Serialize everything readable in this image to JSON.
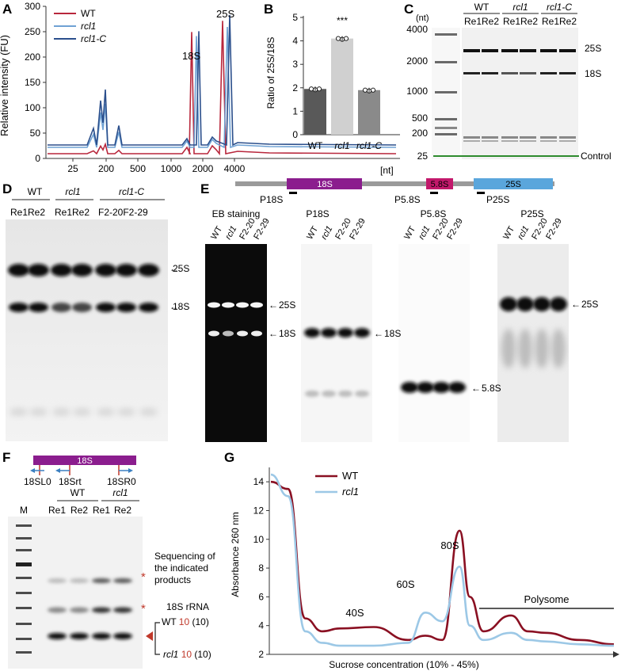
{
  "panels": {
    "A": "A",
    "B": "B",
    "C": "C",
    "D": "D",
    "E": "E",
    "F": "F",
    "G": "G"
  },
  "colors": {
    "wt": "#b8273c",
    "rcl1": "#6fa2d4",
    "rcl1c": "#2b4f8c",
    "purple": "#8b1d8e",
    "magenta": "#c2186b",
    "blue": "#5aa6dc",
    "grey": "#999999",
    "green": "#2e8b2e"
  },
  "A": {
    "ylabel": "Relative intensity (FU)",
    "xunit": "[nt]",
    "yticks": [
      "0",
      "50",
      "100",
      "150",
      "200",
      "250",
      "300"
    ],
    "xticks": [
      "25",
      "200",
      "500",
      "1000",
      "2000",
      "4000"
    ],
    "peaks": {
      "p18": "18S",
      "p25": "25S"
    },
    "legend": [
      "WT",
      "rcl1",
      "rcl1-C"
    ]
  },
  "B": {
    "ylabel": "Ratio of 25S/18S",
    "yticks": [
      "0",
      "1",
      "2",
      "3",
      "4",
      "5"
    ],
    "sig": "***",
    "categories": [
      "WT",
      "rcl1",
      "rcl1-C"
    ]
  },
  "C": {
    "unit": "(nt)",
    "ladder": [
      "4000",
      "2000",
      "1000",
      "500",
      "200",
      "25"
    ],
    "groups": [
      "WT",
      "rcl1",
      "rcl1-C"
    ],
    "reps": [
      "Re1Re2",
      "Re1Re2",
      "Re1Re2"
    ],
    "bands": [
      "25S",
      "18S",
      "Control"
    ]
  },
  "D": {
    "groups": [
      "WT",
      "rcl1",
      "rcl1-C"
    ],
    "reps": [
      "Re1Re2",
      "Re1Re2",
      "F2-20F2-29"
    ],
    "bands": [
      "25S",
      "18S"
    ]
  },
  "E": {
    "map": {
      "b18": "18S",
      "b58": "5.8S",
      "b25": "25S",
      "p18": "P18S",
      "p58": "P5.8S",
      "p25": "P25S"
    },
    "blots": [
      "EB staining",
      "P18S",
      "P5.8S",
      "P25S"
    ],
    "lanes": [
      "WT",
      "rcl1",
      "F2-20",
      "F2-29"
    ],
    "bands": {
      "eb25": "25S",
      "eb18": "18S",
      "p18": "18S",
      "p58": "5.8S",
      "p25": "25S"
    }
  },
  "F": {
    "gene": "18S",
    "primers": [
      "18SL0",
      "18Srt",
      "18SR0"
    ],
    "marker": "M",
    "groups": [
      "WT",
      "rcl1"
    ],
    "lanes": [
      "Re1",
      "Re2",
      "Re1",
      "Re2"
    ],
    "note1": "Sequencing of",
    "note2": "the indicated",
    "note3": "products",
    "rrna": "18S rRNA",
    "wt_label": "WT",
    "wt_num": "10",
    "wt_paren": "(10)",
    "rcl1_label": "rcl1",
    "rcl1_num": "10",
    "rcl1_paren": "(10)",
    "star": "*"
  },
  "G": {
    "ylabel": "Absorbance 260 nm",
    "xlabel": "Sucrose concentration (10% - 45%)",
    "yticks": [
      "2",
      "4",
      "6",
      "8",
      "10",
      "12",
      "14"
    ],
    "legend": [
      "WT",
      "rcl1"
    ],
    "peaks": {
      "s40": "40S",
      "s60": "60S",
      "s80": "80S",
      "poly": "Polysome"
    }
  },
  "chart_data": [
    {
      "type": "bar",
      "categories": [
        "WT",
        "rcl1",
        "rcl1-C"
      ],
      "values": [
        1.95,
        4.1,
        1.9
      ],
      "ylabel": "Ratio of 25S/18S",
      "ylim": [
        0,
        5
      ]
    },
    {
      "type": "line",
      "ylabel": "Relative intensity (FU)",
      "xlabel": "[nt]",
      "ylim": [
        0,
        300
      ],
      "series": [
        {
          "name": "WT",
          "peaks_x_nt": [
            1800,
            2950
          ],
          "peaks_y": [
            240,
            262
          ]
        },
        {
          "name": "rcl1",
          "peaks_x_nt": [
            1800,
            2950
          ],
          "peaks_y": [
            232,
            250
          ]
        },
        {
          "name": "rcl1-C",
          "peaks_x_nt": [
            1800,
            2950
          ],
          "peaks_y": [
            240,
            272
          ]
        }
      ]
    },
    {
      "type": "line",
      "ylabel": "Absorbance 260 nm",
      "xlabel": "Sucrose concentration (10% - 45%)",
      "ylim": [
        2,
        15
      ],
      "series": [
        {
          "name": "WT",
          "x": [
            0,
            0.05,
            0.1,
            0.15,
            0.2,
            0.3,
            0.4,
            0.45,
            0.5,
            0.55,
            0.58,
            0.62,
            0.7,
            0.75,
            0.8,
            0.9,
            1.0
          ],
          "y": [
            14,
            13.5,
            4.5,
            3.6,
            3.8,
            3.9,
            3.0,
            3.3,
            3.0,
            10.6,
            6.0,
            3.6,
            4.7,
            3.6,
            3.5,
            3.0,
            2.7
          ]
        },
        {
          "name": "rcl1",
          "x": [
            0,
            0.05,
            0.1,
            0.15,
            0.2,
            0.3,
            0.4,
            0.45,
            0.5,
            0.55,
            0.58,
            0.62,
            0.7,
            0.75,
            0.8,
            0.9,
            1.0
          ],
          "y": [
            14.5,
            13,
            3.6,
            2.8,
            2.6,
            2.6,
            2.8,
            4.9,
            4.3,
            8.1,
            4.0,
            3.0,
            3.5,
            3.0,
            2.9,
            2.7,
            2.6
          ]
        }
      ]
    }
  ]
}
